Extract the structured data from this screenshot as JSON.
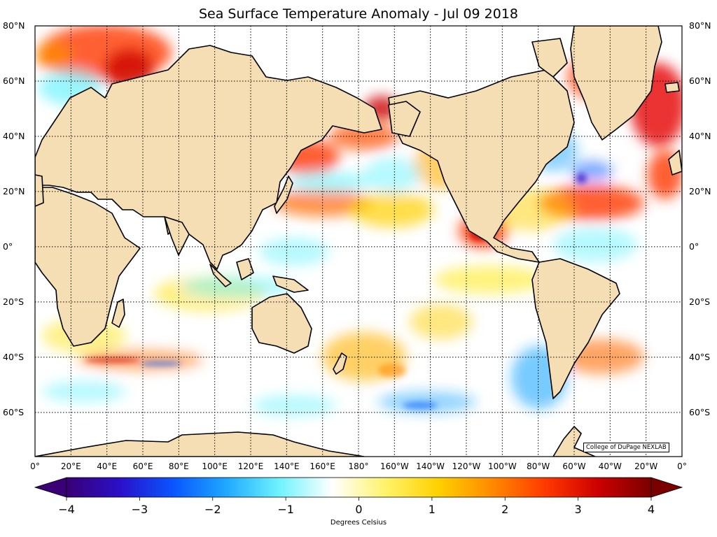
{
  "title": "Sea Surface Temperature Anomaly - Jul 09 2018",
  "credit": "College of DuPage NEXLAB",
  "map": {
    "projection": "cylindrical",
    "lon_range": [
      0,
      360
    ],
    "lat_range": [
      -76,
      80
    ],
    "ocean_base_color": "#ffffff",
    "land_color": "#f5deb3",
    "gridlines": "dotted",
    "lat_labels": [
      "80°N",
      "60°N",
      "40°N",
      "20°N",
      "0°",
      "20°S",
      "40°S",
      "60°S"
    ],
    "lon_labels": [
      "0°",
      "20°E",
      "40°E",
      "60°E",
      "80°E",
      "100°E",
      "120°E",
      "140°E",
      "160°E",
      "180°",
      "160°W",
      "140°W",
      "120°W",
      "100°W",
      "80°W",
      "60°W",
      "40°W",
      "20°W",
      "0°"
    ]
  },
  "colorbar": {
    "min": -4,
    "max": 4,
    "ticks": [
      "−4",
      "−3",
      "−2",
      "−1",
      "0",
      "1",
      "2",
      "3",
      "4"
    ],
    "label": "Degrees Celsius",
    "extend": "both",
    "colors": [
      "#3a0075",
      "#2a10c8",
      "#0a55ff",
      "#1ea8ff",
      "#6ef3ff",
      "#ffffff",
      "#fff36a",
      "#ffd000",
      "#ff8a00",
      "#ff3a00",
      "#cc0000",
      "#7a0000"
    ]
  }
}
